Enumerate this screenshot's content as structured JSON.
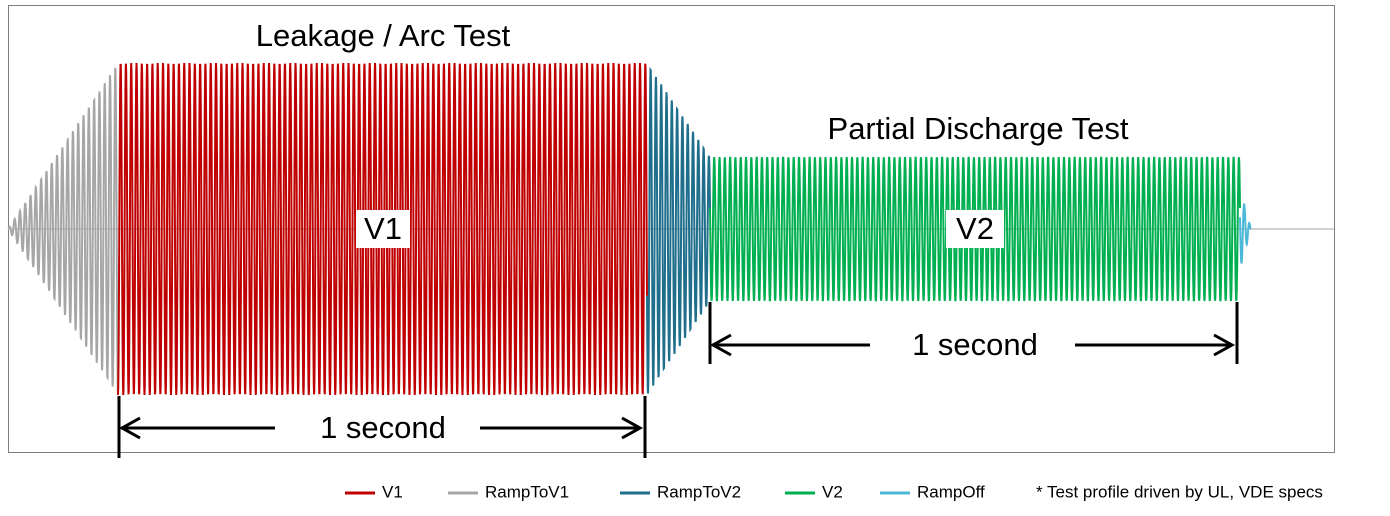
{
  "annotations": {
    "test1": "Leakage / Arc Test",
    "test2": "Partial Discharge Test",
    "label1": "V1",
    "label2": "V2",
    "duration1": "1 second",
    "duration2": "1 second"
  },
  "legend": [
    {
      "name": "V1",
      "color": "#c00000"
    },
    {
      "name": "RampToV1",
      "color": "#a6a6a6"
    },
    {
      "name": "RampToV2",
      "color": "#1f6e8c"
    },
    {
      "name": "V2",
      "color": "#00b050"
    },
    {
      "name": "RampOff",
      "color": "#4bb8d8"
    }
  ],
  "footnote": "* Test profile driven by UL, VDE specs"
}
